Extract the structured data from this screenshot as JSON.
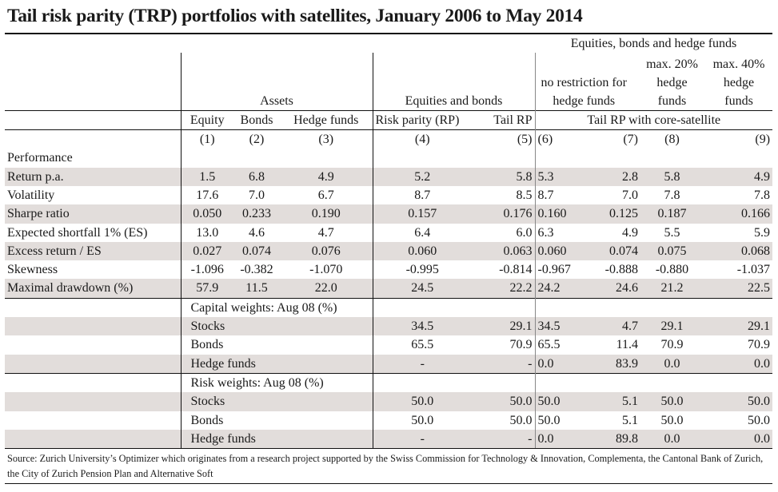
{
  "title": "Tail risk parity (TRP) portfolios with satellites, January 2006 to May 2014",
  "header": {
    "group_top": "Equities, bonds and hedge funds",
    "group_assets": "Assets",
    "group_eq_bonds": "Equities and bonds",
    "sub_6": "no restriction for hedge funds",
    "sub_8": "max. 20% hedge funds",
    "sub_9": "max. 40% hedge funds",
    "columns": [
      "Equity",
      "Bonds",
      "Hedge funds",
      "Risk parity (RP)",
      "Tail RP"
    ],
    "core_satellite": "Tail RP with core-satellite",
    "numbers": [
      "(1)",
      "(2)",
      "(3)",
      "(4)",
      "(5)",
      "(6)",
      "(7)",
      "(8)",
      "(9)"
    ]
  },
  "performance": {
    "heading": "Performance",
    "rows": [
      {
        "label": "Return p.a.",
        "values": [
          "1.5",
          "6.8",
          "4.9",
          "5.2",
          "5.8",
          "5.3",
          "2.8",
          "5.8",
          "4.9"
        ]
      },
      {
        "label": "Volatility",
        "values": [
          "17.6",
          "7.0",
          "6.7",
          "8.7",
          "8.5",
          "8.7",
          "7.0",
          "7.8",
          "7.8"
        ]
      },
      {
        "label": "Sharpe ratio",
        "values": [
          "0.050",
          "0.233",
          "0.190",
          "0.157",
          "0.176",
          "0.160",
          "0.125",
          "0.187",
          "0.166"
        ]
      },
      {
        "label": "Expected shortfall 1% (ES)",
        "values": [
          "13.0",
          "4.6",
          "4.7",
          "6.4",
          "6.0",
          "6.3",
          "4.9",
          "5.5",
          "5.9"
        ]
      },
      {
        "label": "Excess return / ES",
        "values": [
          "0.027",
          "0.074",
          "0.076",
          "0.060",
          "0.063",
          "0.060",
          "0.074",
          "0.075",
          "0.068"
        ]
      },
      {
        "label": "Skewness",
        "values": [
          "-1.096",
          "-0.382",
          "-1.070",
          "-0.995",
          "-0.814",
          "-0.967",
          "-0.888",
          "-0.880",
          "-1.037"
        ]
      },
      {
        "label": "Maximal drawdown (%)",
        "values": [
          "57.9",
          "11.5",
          "22.0",
          "24.5",
          "22.2",
          "24.2",
          "24.6",
          "21.2",
          "22.5"
        ]
      }
    ]
  },
  "capital_weights": {
    "heading": "Capital weights: Aug 08 (%)",
    "rows": [
      {
        "label": "Stocks",
        "values": [
          "34.5",
          "29.1",
          "34.5",
          "4.7",
          "29.1",
          "29.1"
        ]
      },
      {
        "label": "Bonds",
        "values": [
          "65.5",
          "70.9",
          "65.5",
          "11.4",
          "70.9",
          "70.9"
        ]
      },
      {
        "label": "Hedge funds",
        "values": [
          "-",
          "-",
          "0.0",
          "83.9",
          "0.0",
          "0.0"
        ]
      }
    ]
  },
  "risk_weights": {
    "heading": "Risk weights: Aug 08 (%)",
    "rows": [
      {
        "label": "Stocks",
        "values": [
          "50.0",
          "50.0",
          "50.0",
          "5.1",
          "50.0",
          "50.0"
        ]
      },
      {
        "label": "Bonds",
        "values": [
          "50.0",
          "50.0",
          "50.0",
          "5.1",
          "50.0",
          "50.0"
        ]
      },
      {
        "label": "Hedge funds",
        "values": [
          "-",
          "-",
          "0.0",
          "89.8",
          "0.0",
          "0.0"
        ]
      }
    ]
  },
  "source": "Source: Zurich University’s Optimizer which originates from a research project supported by the Swiss Commission for Technology & Innovation, Complementa, the Cantonal Bank of Zurich, the City of Zurich Pension Plan and Alternative Soft",
  "colors": {
    "shade": "#e2dddb",
    "rule": "#111111",
    "core_divider": "#888888"
  }
}
